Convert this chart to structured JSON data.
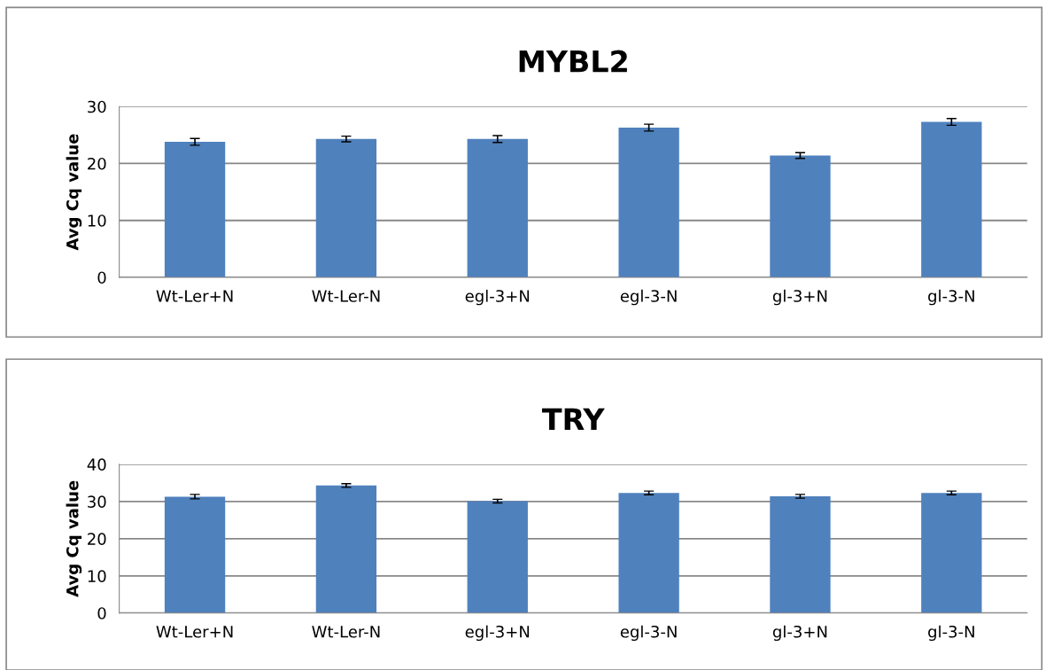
{
  "chart_data": [
    {
      "type": "bar",
      "title": "MYBL2",
      "ylabel": "Avg Cq value",
      "categories": [
        "Wt-Ler+N",
        "Wt-Ler-N",
        "egl-3+N",
        "egl-3-N",
        "gl-3+N",
        "gl-3-N"
      ],
      "values": [
        23.8,
        24.3,
        24.3,
        26.3,
        21.4,
        27.3
      ],
      "errors": [
        0.6,
        0.5,
        0.6,
        0.6,
        0.5,
        0.6
      ],
      "color": "#4f81bd",
      "ylim": [
        0,
        30
      ],
      "yticks": [
        0,
        10,
        20,
        30
      ],
      "grid": "y"
    },
    {
      "type": "bar",
      "title": "TRY",
      "ylabel": "Avg Cq value",
      "categories": [
        "Wt-Ler+N",
        "Wt-Ler-N",
        "egl-3+N",
        "egl-3-N",
        "gl-3+N",
        "gl-3-N"
      ],
      "values": [
        31.3,
        34.3,
        30.1,
        32.3,
        31.4,
        32.3
      ],
      "errors": [
        0.6,
        0.5,
        0.5,
        0.5,
        0.5,
        0.5
      ],
      "color": "#4f81bd",
      "ylim": [
        0,
        40
      ],
      "yticks": [
        0,
        10,
        20,
        30,
        40
      ],
      "grid": "y"
    }
  ]
}
